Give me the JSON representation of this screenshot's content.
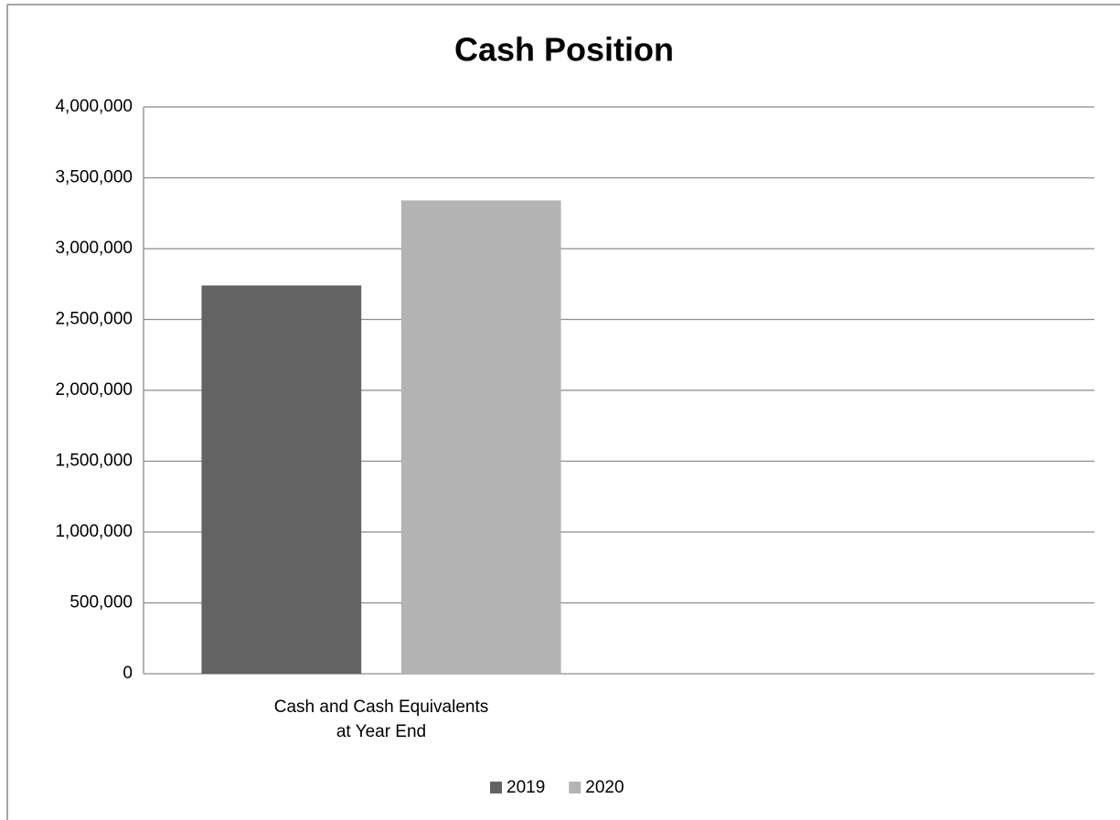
{
  "chart_data": {
    "type": "bar",
    "title": "Cash Position",
    "categories": [
      "Cash and Cash Equivalents at Year End",
      null
    ],
    "series": [
      {
        "name": "2019",
        "color": "#636363",
        "values": [
          2740000,
          null
        ]
      },
      {
        "name": "2020",
        "color": "#b3b3b3",
        "values": [
          3340000,
          null
        ]
      }
    ],
    "ylim": [
      0,
      4000000
    ],
    "yticks": [
      0,
      {
        "value": 500000,
        "label": "500,000"
      },
      {
        "value": 1000000,
        "label": "1,000,000"
      },
      {
        "value": 1500000,
        "label": "1,500,000"
      },
      {
        "value": 2000000,
        "label": "2,000,000"
      },
      {
        "value": 2500000,
        "label": "2,500,000"
      },
      {
        "value": 3000000,
        "label": "3,000,000"
      },
      {
        "value": 3500000,
        "label": "3,500,000"
      },
      {
        "value": 4000000,
        "label": "4,000,000"
      }
    ],
    "grid": true,
    "legend": "bottom"
  }
}
